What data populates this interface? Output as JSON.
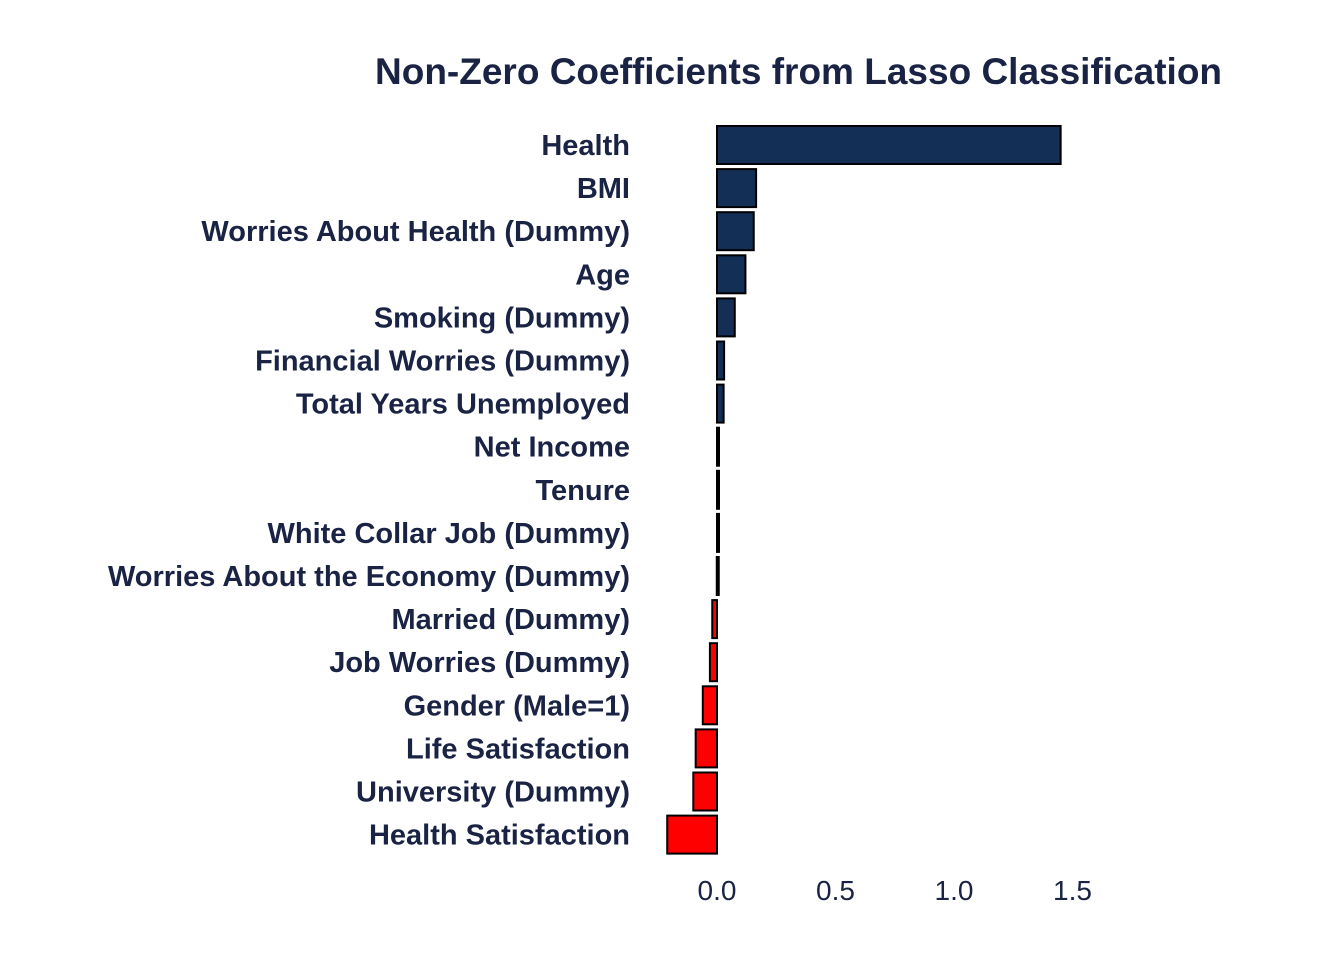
{
  "chart_data": {
    "type": "bar",
    "orientation": "horizontal",
    "title": "Non-Zero Coefficients from Lasso Classification",
    "xlabel": "",
    "ylabel": "",
    "categories": [
      "Health",
      "BMI",
      "Worries About Health (Dummy)",
      "Age",
      "Smoking (Dummy)",
      "Financial Worries (Dummy)",
      "Total Years Unemployed",
      "Net Income",
      "Tenure",
      "White Collar Job (Dummy)",
      "Worries About the Economy (Dummy)",
      "Married (Dummy)",
      "Job Worries (Dummy)",
      "Gender (Male=1)",
      "Life Satisfaction",
      "University (Dummy)",
      "Health Satisfaction"
    ],
    "values": [
      1.45,
      0.165,
      0.155,
      0.12,
      0.075,
      0.03,
      0.028,
      0.004,
      0.003,
      0.002,
      -0.001,
      -0.02,
      -0.03,
      -0.06,
      -0.09,
      -0.1,
      -0.21
    ],
    "xlim": [
      -0.3,
      1.65
    ],
    "xticks": [
      0.0,
      0.5,
      1.0,
      1.5
    ],
    "xtick_labels": [
      "0.0",
      "0.5",
      "1.0",
      "1.5"
    ],
    "grid": false,
    "colors": {
      "positive": "#142f55",
      "negative": "#ff0000",
      "outline": "#000000",
      "text": "#1a2344"
    }
  }
}
